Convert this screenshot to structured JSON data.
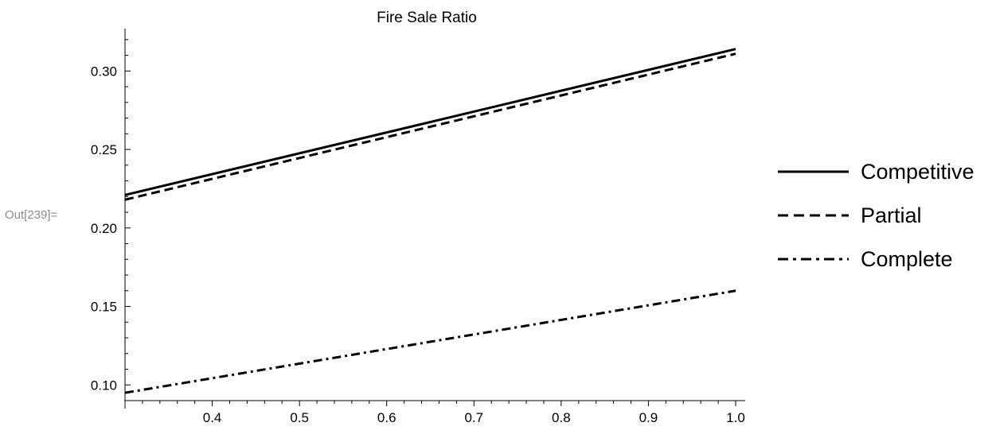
{
  "cell": {
    "out_label": "Out[239]="
  },
  "chart_data": {
    "type": "line",
    "title": "Fire Sale Ratio",
    "xlabel": "",
    "ylabel": "",
    "xlim": [
      0.3,
      1.0
    ],
    "ylim": [
      0.09,
      0.327
    ],
    "x_ticks": [
      0.4,
      0.5,
      0.6,
      0.7,
      0.8,
      0.9,
      1.0
    ],
    "x_tick_labels": [
      "0.4",
      "0.5",
      "0.6",
      "0.7",
      "0.8",
      "0.9",
      "1.0"
    ],
    "y_ticks": [
      0.1,
      0.15,
      0.2,
      0.25,
      0.3
    ],
    "y_tick_labels": [
      "0.10",
      "0.15",
      "0.20",
      "0.25",
      "0.30"
    ],
    "grid": false,
    "legend_position": "right",
    "series": [
      {
        "name": "Competitive",
        "style": "solid",
        "color": "#000000",
        "x": [
          0.3,
          1.0
        ],
        "y": [
          0.221,
          0.314
        ]
      },
      {
        "name": "Partial",
        "style": "dashed",
        "color": "#000000",
        "x": [
          0.3,
          1.0
        ],
        "y": [
          0.218,
          0.311
        ]
      },
      {
        "name": "Complete",
        "style": "dashdot",
        "color": "#000000",
        "x": [
          0.3,
          1.0
        ],
        "y": [
          0.095,
          0.16
        ]
      }
    ]
  }
}
